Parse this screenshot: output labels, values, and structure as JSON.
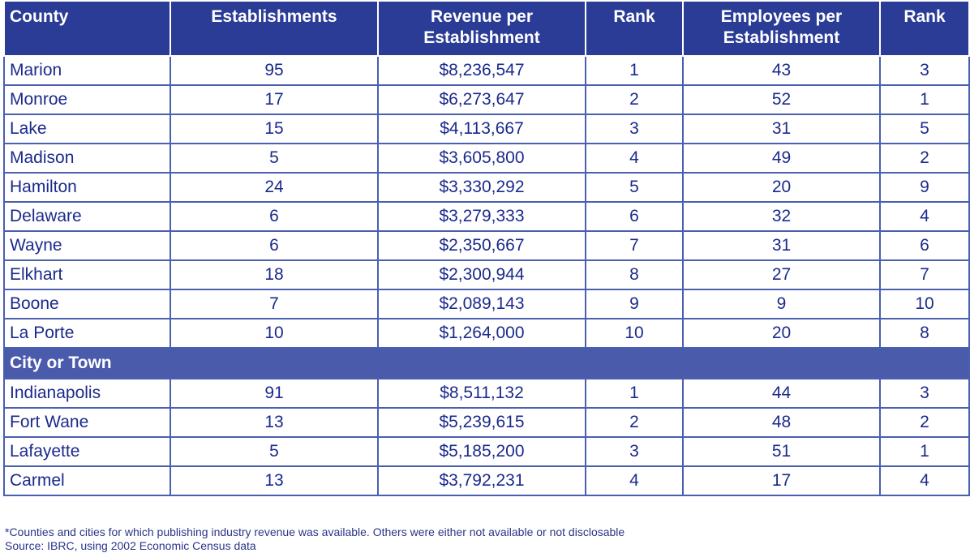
{
  "chart_data": {
    "type": "table",
    "columns": [
      "County",
      "Establishments",
      "Revenue per Establishment",
      "Rank",
      "Employees per Establishment",
      "Rank"
    ],
    "sections": [
      {
        "label": "",
        "rows": [
          [
            "Marion",
            "95",
            "$8,236,547",
            "1",
            "43",
            "3"
          ],
          [
            "Monroe",
            "17",
            "$6,273,647",
            "2",
            "52",
            "1"
          ],
          [
            "Lake",
            "15",
            "$4,113,667",
            "3",
            "31",
            "5"
          ],
          [
            "Madison",
            "5",
            "$3,605,800",
            "4",
            "49",
            "2"
          ],
          [
            "Hamilton",
            "24",
            "$3,330,292",
            "5",
            "20",
            "9"
          ],
          [
            "Delaware",
            "6",
            "$3,279,333",
            "6",
            "32",
            "4"
          ],
          [
            "Wayne",
            "6",
            "$2,350,667",
            "7",
            "31",
            "6"
          ],
          [
            "Elkhart",
            "18",
            "$2,300,944",
            "8",
            "27",
            "7"
          ],
          [
            "Boone",
            "7",
            "$2,089,143",
            "9",
            "9",
            "10"
          ],
          [
            "La Porte",
            "10",
            "$1,264,000",
            "10",
            "20",
            "8"
          ]
        ]
      },
      {
        "label": "City or Town",
        "rows": [
          [
            "Indianapolis",
            "91",
            "$8,511,132",
            "1",
            "44",
            "3"
          ],
          [
            "Fort Wane",
            "13",
            "$5,239,615",
            "2",
            "48",
            "2"
          ],
          [
            "Lafayette",
            "5",
            "$5,185,200",
            "3",
            "51",
            "1"
          ],
          [
            "Carmel",
            "13",
            "$3,792,231",
            "4",
            "17",
            "4"
          ]
        ]
      }
    ]
  },
  "notes": {
    "footnote": "*Counties and cities for which publishing industry revenue was available. Others were either not available or not disclosable",
    "source": "Source: IBRC, using 2002 Economic Census data"
  },
  "colors": {
    "header_bg": "#2a3c96",
    "section_bg": "#4a5bab",
    "text": "#1b2a8c",
    "grid": "#4a5fb0"
  }
}
